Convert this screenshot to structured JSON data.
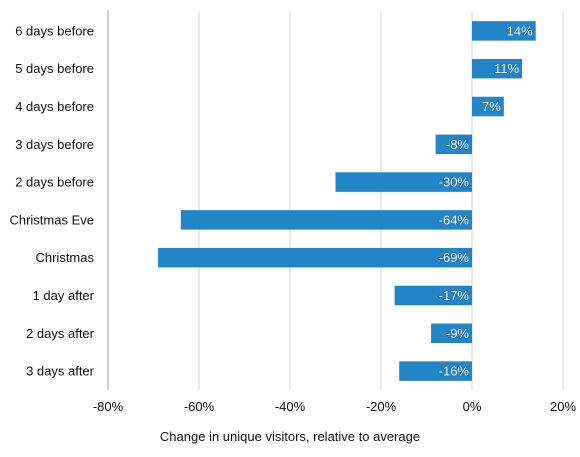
{
  "chart_data": {
    "type": "bar",
    "orientation": "horizontal",
    "categories": [
      "6 days before",
      "5 days before",
      "4 days before",
      "3 days before",
      "2 days before",
      "Christmas Eve",
      "Christmas",
      "1 day after",
      "2 days after",
      "3 days after"
    ],
    "values": [
      14,
      11,
      7,
      -8,
      -30,
      -64,
      -69,
      -17,
      -9,
      -16
    ],
    "data_labels": [
      "14%",
      "11%",
      "7%",
      "-8%",
      "-30%",
      "-64%",
      "-69%",
      "-17%",
      "-9%",
      "-16%"
    ],
    "x_ticks": [
      -80,
      -60,
      -40,
      -20,
      0,
      20
    ],
    "x_tick_labels": [
      "-80%",
      "-60%",
      "-40%",
      "-20%",
      "0%",
      "20%"
    ],
    "xlim": [
      -80,
      20
    ],
    "xlabel": "Change in unique visitors, relative to average",
    "ylabel": "",
    "title": "",
    "grid": "vertical",
    "legend": "none",
    "colors": {
      "bar": "#2185c8",
      "grid": "#d4d4d4",
      "axis": "#999999"
    }
  }
}
